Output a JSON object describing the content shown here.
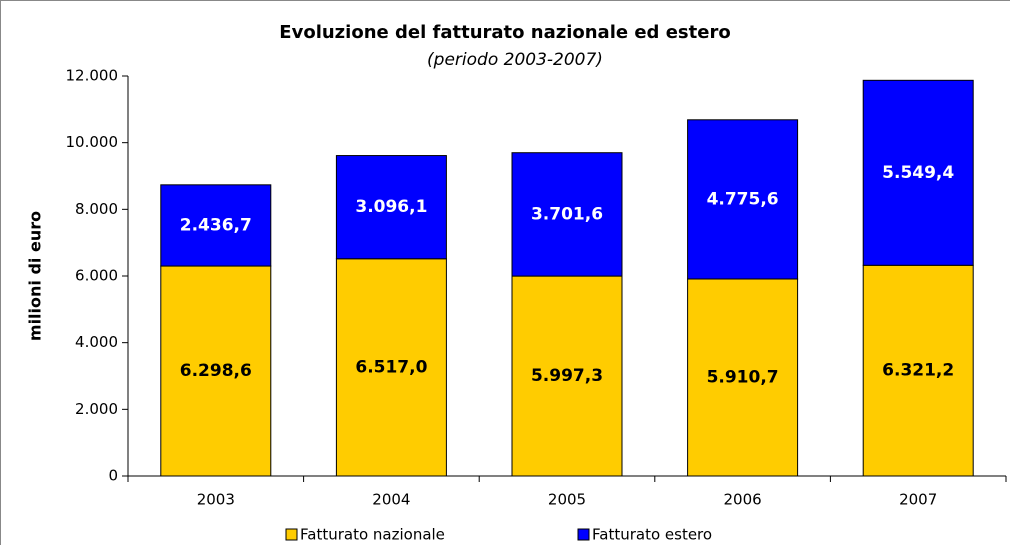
{
  "chart_data": {
    "type": "stacked_bar",
    "title": "Evoluzione del fatturato nazionale ed estero",
    "subtitle": "(periodo 2003-2007)",
    "ylabel": "milioni di euro",
    "categories": [
      "2003",
      "2004",
      "2005",
      "2006",
      "2007"
    ],
    "series": [
      {
        "name": "Fatturato nazionale",
        "color": "#FFCC00",
        "values": [
          6298.6,
          6517.0,
          5997.3,
          5910.7,
          6321.2
        ],
        "value_labels": [
          "6.298,6",
          "6.517,0",
          "5.997,3",
          "5.910,7",
          "6.321,2"
        ]
      },
      {
        "name": "Fatturato estero",
        "color": "#0000FF",
        "values": [
          2436.7,
          3096.1,
          3701.6,
          4775.6,
          5549.4
        ],
        "value_labels": [
          "2.436,7",
          "3.096,1",
          "3.701,6",
          "4.775,6",
          "5.549,4"
        ]
      }
    ],
    "ylim": [
      0,
      12000
    ],
    "yticks": [
      0,
      {
        "value": 2000,
        "label": "2.000"
      },
      {
        "value": 4000,
        "label": "4.000"
      },
      {
        "value": 6000,
        "label": "6.000"
      },
      {
        "value": 8000,
        "label": "8.000"
      },
      {
        "value": 10000,
        "label": "10.000"
      },
      {
        "value": 12000,
        "label": "12.000"
      }
    ],
    "legend": "bottom"
  }
}
